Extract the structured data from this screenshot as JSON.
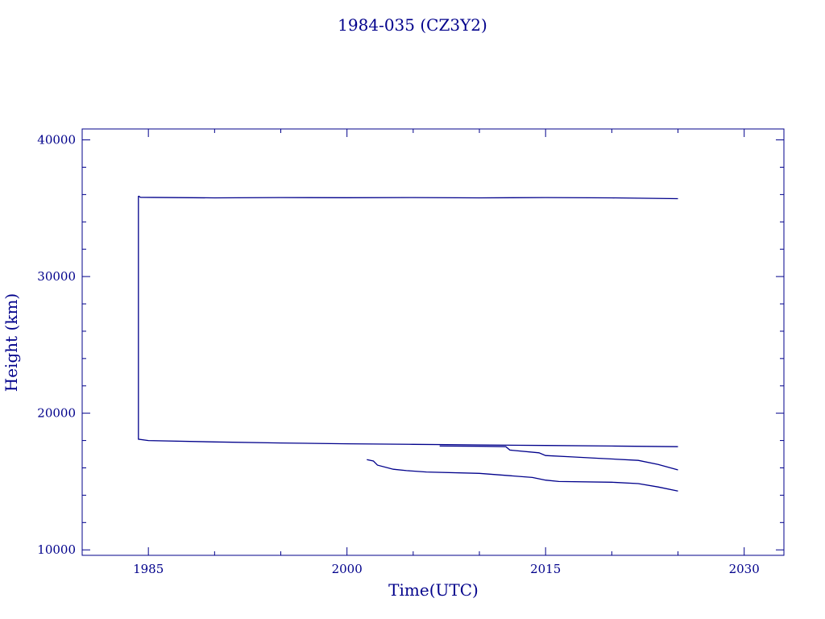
{
  "chart_data": {
    "type": "line",
    "title": "1984-035 (CZ3Y2)",
    "xlabel": "Time(UTC)",
    "ylabel": "Height (km)",
    "xlim": [
      1980,
      2033
    ],
    "ylim": [
      9600,
      40800
    ],
    "x_ticks": [
      1985,
      2000,
      2015,
      2030
    ],
    "y_ticks": [
      10000,
      20000,
      30000,
      40000
    ],
    "grid": false,
    "color": "#00008b",
    "series": [
      {
        "values": [
          [
            1984.25,
            35900
          ],
          [
            1984.4,
            35800
          ],
          [
            1990,
            35760
          ],
          [
            1995,
            35780
          ],
          [
            2000,
            35770
          ],
          [
            2005,
            35780
          ],
          [
            2010,
            35760
          ],
          [
            2015,
            35780
          ],
          [
            2020,
            35760
          ],
          [
            2025,
            35700
          ]
        ]
      },
      {
        "values": [
          [
            1984.25,
            35900
          ],
          [
            1984.25,
            18100
          ],
          [
            1985,
            18000
          ],
          [
            1990,
            17900
          ],
          [
            1995,
            17820
          ],
          [
            2000,
            17760
          ],
          [
            2005,
            17720
          ],
          [
            2010,
            17680
          ],
          [
            2015,
            17640
          ],
          [
            2020,
            17600
          ],
          [
            2025,
            17550
          ]
        ]
      },
      {
        "values": [
          [
            2007,
            17600
          ],
          [
            2010,
            17580
          ],
          [
            2012,
            17550
          ],
          [
            2012.3,
            17300
          ],
          [
            2014.5,
            17100
          ],
          [
            2015,
            16900
          ],
          [
            2017,
            16800
          ],
          [
            2019,
            16700
          ],
          [
            2022,
            16550
          ],
          [
            2023.5,
            16250
          ],
          [
            2025,
            15850
          ]
        ]
      },
      {
        "values": [
          [
            2001.5,
            16600
          ],
          [
            2002,
            16500
          ],
          [
            2002.3,
            16200
          ],
          [
            2003.5,
            15900
          ],
          [
            2004.5,
            15800
          ],
          [
            2006,
            15700
          ],
          [
            2010,
            15600
          ],
          [
            2012,
            15450
          ],
          [
            2014,
            15300
          ],
          [
            2015,
            15100
          ],
          [
            2016,
            15000
          ],
          [
            2020,
            14950
          ],
          [
            2022,
            14850
          ],
          [
            2023.5,
            14600
          ],
          [
            2025,
            14300
          ]
        ]
      }
    ]
  }
}
